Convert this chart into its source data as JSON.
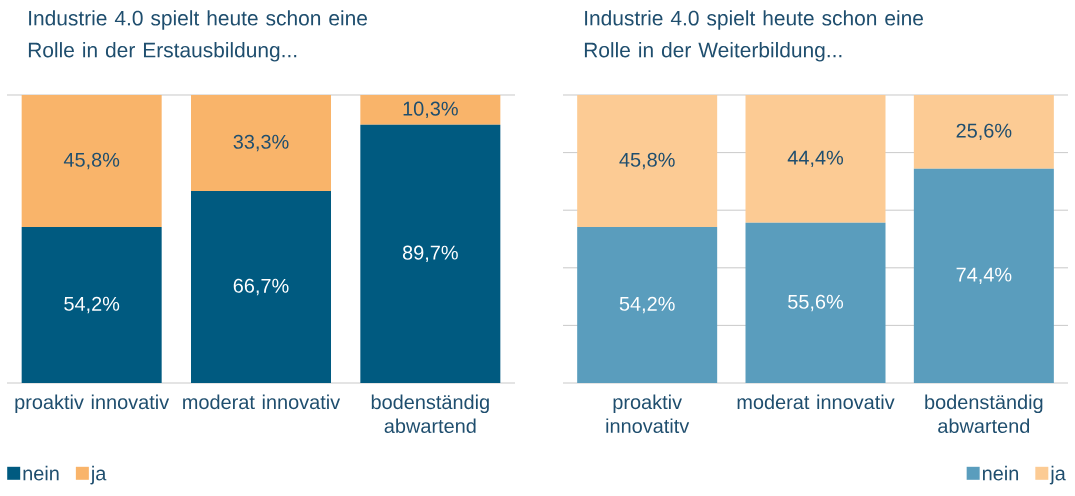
{
  "chart_data": [
    {
      "type": "bar",
      "stacked": true,
      "title": "Industrie 4.0 spielt heute schon eine Rolle in der Erstausbildung...",
      "categories": [
        "proaktiv innovativ",
        "moderat innovativ",
        "bodenständig abwartend"
      ],
      "series": [
        {
          "name": "nein",
          "color": "#005a80",
          "values": [
            54.2,
            66.7,
            89.7
          ],
          "value_labels": [
            "54,2%",
            "66,7%",
            "89,7%"
          ]
        },
        {
          "name": "ja",
          "color": "#f9b46a",
          "values": [
            45.8,
            33.3,
            10.3
          ],
          "value_labels": [
            "45,8%",
            "33,3%",
            "10,3%"
          ]
        }
      ],
      "ylim": [
        0,
        100
      ],
      "yticks": [
        {
          "value": 0,
          "label": null
        },
        {
          "value": 100,
          "label": null
        }
      ],
      "grid": "y",
      "tick_labels": "x",
      "legend": "bottom left"
    },
    {
      "type": "bar",
      "stacked": true,
      "title": "Industrie 4.0 spielt heute schon eine Rolle in der Weiterbildung...",
      "categories": [
        "proaktiv innovatitv",
        "moderat innovativ",
        "bodenständig abwartend"
      ],
      "series": [
        {
          "name": "nein",
          "color": "#5a9dbd",
          "values": [
            54.2,
            55.6,
            74.4
          ],
          "value_labels": [
            "54,2%",
            "55,6%",
            "74,4%"
          ]
        },
        {
          "name": "ja",
          "color": "#fccb94",
          "values": [
            45.8,
            44.4,
            25.6
          ],
          "value_labels": [
            "45,8%",
            "44,4%",
            "25,6%"
          ]
        }
      ],
      "ylim": [
        0,
        100
      ],
      "yticks": [
        {
          "value": 0,
          "label": null
        },
        {
          "value": 20,
          "label": null
        },
        {
          "value": 40,
          "label": null
        },
        {
          "value": 60,
          "label": null
        },
        {
          "value": 80,
          "label": null
        },
        {
          "value": 100,
          "label": null
        }
      ],
      "grid": "y",
      "tick_labels": "x",
      "legend": "bottom right"
    }
  ]
}
